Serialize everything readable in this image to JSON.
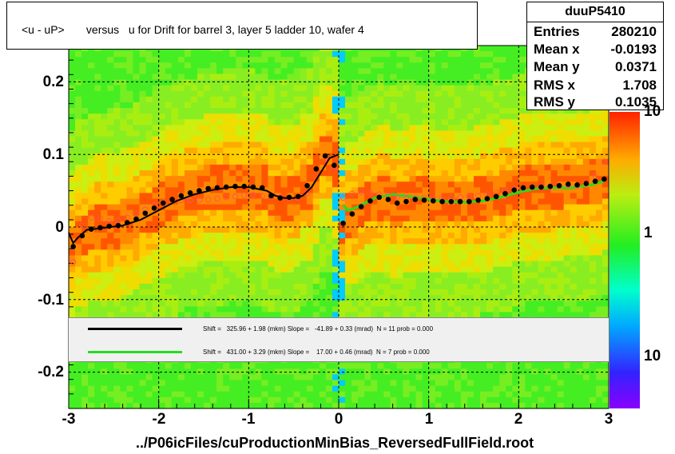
{
  "title": "<u - uP>       versus   u for Drift for barrel 3, layer 5 ladder 10, wafer 4",
  "xlabel": "../P06icFiles/cuProductionMinBias_ReversedFullField.root",
  "stats": {
    "name": "duuP5410",
    "rows": [
      {
        "key": "Entries",
        "value": "280210"
      },
      {
        "key": "Mean x",
        "value": "-0.0193"
      },
      {
        "key": "Mean y",
        "value": "0.0371"
      },
      {
        "key": "RMS x",
        "value": "1.708"
      },
      {
        "key": "RMS y",
        "value": "0.1035"
      }
    ]
  },
  "fits": [
    {
      "color": "#000000",
      "text": "Shift =   325.96 + 1.98 (mkm) Slope =   -41.89 + 0.33 (mrad)  N = 11 prob = 0.000"
    },
    {
      "color": "#22dd22",
      "text": "Shift =   431.00 + 3.29 (mkm) Slope =    17.00 + 0.46 (mrad)  N = 7 prob = 0.000"
    }
  ],
  "colorbar_ticks": [
    "10",
    "1",
    "10"
  ],
  "colors": {
    "profile_black": "#000000",
    "profile_open": "#ff5555",
    "fit_green": "#22dd22",
    "grid": "#000000"
  },
  "chart_data": {
    "type": "heatmap",
    "title": "<u - uP>       versus   u for Drift for barrel 3, layer 5 ladder 10, wafer 4",
    "xlabel": "../P06icFiles/cuProductionMinBias_ReversedFullField.root",
    "ylabel": "",
    "xlim": [
      -3,
      3
    ],
    "ylim": [
      -0.25,
      0.25
    ],
    "x_ticks": [
      "-3",
      "-2",
      "-1",
      "0",
      "1",
      "2",
      "3"
    ],
    "y_ticks": [
      "0.2",
      "0.1",
      "0",
      "-0.1",
      "-0.2"
    ],
    "y_tick_values": [
      0.2,
      0.1,
      0,
      -0.1,
      -0.2
    ],
    "grid": true,
    "series": [
      {
        "name": "",
        "style": "filled-black-markers",
        "x": [
          -2.95,
          -2.85,
          -2.75,
          -2.65,
          -2.55,
          -2.45,
          -2.35,
          -2.25,
          -2.15,
          -2.05,
          -1.95,
          -1.85,
          -1.75,
          -1.65,
          -1.55,
          -1.45,
          -1.35,
          -1.25,
          -1.15,
          -1.05,
          -0.95,
          -0.85,
          -0.75,
          -0.65,
          -0.55,
          -0.45,
          -0.35,
          -0.25,
          -0.15,
          -0.05,
          0.05,
          0.15,
          0.25,
          0.35,
          0.45,
          0.55,
          0.65,
          0.75,
          0.85,
          0.95,
          1.05,
          1.15,
          1.25,
          1.35,
          1.45,
          1.55,
          1.65,
          1.75,
          1.85,
          1.95,
          2.05,
          2.15,
          2.25,
          2.35,
          2.45,
          2.55,
          2.65,
          2.75,
          2.85,
          2.95
        ],
        "y": [
          -0.027,
          -0.012,
          -0.003,
          -0.001,
          0.001,
          0.002,
          0.006,
          0.011,
          0.019,
          0.026,
          0.033,
          0.038,
          0.043,
          0.047,
          0.05,
          0.053,
          0.054,
          0.055,
          0.056,
          0.056,
          0.055,
          0.054,
          0.043,
          0.04,
          0.041,
          0.042,
          0.057,
          0.08,
          0.098,
          0.085,
          0.005,
          0.018,
          0.028,
          0.036,
          0.041,
          0.038,
          0.033,
          0.035,
          0.038,
          0.037,
          0.036,
          0.035,
          0.035,
          0.035,
          0.035,
          0.037,
          0.039,
          0.042,
          0.046,
          0.051,
          0.054,
          0.055,
          0.055,
          0.056,
          0.057,
          0.059,
          0.058,
          0.06,
          0.063,
          0.066
        ]
      },
      {
        "name": "",
        "style": "open-red-markers",
        "x": [
          -2.95,
          -2.85,
          -2.75,
          -2.65,
          -2.55,
          -2.45,
          -2.35,
          -2.25,
          -2.15,
          -2.05,
          -1.95,
          -1.85,
          -1.75,
          -1.65,
          -1.55,
          -1.45,
          -1.35,
          -1.25,
          -1.15,
          -1.05,
          -0.95,
          -0.85,
          -0.75,
          -0.65,
          -0.55,
          -0.45,
          -0.35,
          -0.25,
          -0.15,
          -0.05,
          0.05,
          0.15,
          0.25,
          0.35,
          0.45,
          0.55,
          0.65,
          0.75,
          0.85,
          0.95,
          1.05,
          1.15,
          1.25,
          1.35,
          1.45,
          1.55,
          1.65,
          1.75,
          1.85,
          1.95,
          2.05,
          2.15,
          2.25,
          2.35,
          2.45,
          2.55,
          2.65,
          2.75,
          2.85,
          2.95
        ],
        "y": [
          -0.048,
          0.002,
          0.013,
          0.012,
          0.008,
          0.009,
          0.013,
          0.018,
          0.024,
          0.03,
          0.034,
          0.036,
          0.037,
          0.037,
          0.037,
          0.038,
          0.039,
          0.041,
          0.042,
          0.044,
          0.044,
          0.043,
          0.042,
          0.041,
          0.04,
          0.04,
          0.047,
          0.07,
          0.094,
          0.08,
          0.04,
          0.046,
          0.048,
          0.047,
          0.045,
          0.043,
          0.041,
          0.04,
          0.04,
          0.04,
          0.04,
          0.04,
          0.04,
          0.041,
          0.042,
          0.043,
          0.045,
          0.047,
          0.05,
          0.052,
          0.054,
          0.055,
          0.055,
          0.056,
          0.057,
          0.058,
          0.057,
          0.06,
          0.07,
          0.09
        ]
      },
      {
        "name": "",
        "style": "black-fit-line",
        "x": [
          -3.0,
          -2.95,
          -2.9,
          -2.8,
          -2.6,
          -2.4,
          -2.2,
          -2.0,
          -1.8,
          -1.6,
          -1.4,
          -1.2,
          -1.0,
          -0.8,
          -0.7,
          -0.6,
          -0.5,
          -0.4,
          -0.3,
          -0.2,
          -0.1,
          0.0
        ],
        "y": [
          -0.008,
          -0.022,
          -0.015,
          -0.004,
          -0.001,
          0.002,
          0.01,
          0.023,
          0.036,
          0.045,
          0.051,
          0.055,
          0.055,
          0.05,
          0.043,
          0.04,
          0.04,
          0.043,
          0.055,
          0.075,
          0.095,
          0.1
        ]
      },
      {
        "name": "",
        "style": "green-fit-line",
        "x": [
          0.05,
          0.1,
          0.2,
          0.4,
          0.6,
          0.8,
          1.0,
          1.2,
          1.4,
          1.6,
          1.8,
          2.0,
          2.2,
          2.4,
          2.6,
          2.8,
          2.95
        ],
        "y": [
          0.03,
          0.023,
          0.027,
          0.04,
          0.045,
          0.042,
          0.038,
          0.035,
          0.034,
          0.036,
          0.041,
          0.048,
          0.053,
          0.054,
          0.054,
          0.058,
          0.063
        ]
      }
    ]
  }
}
